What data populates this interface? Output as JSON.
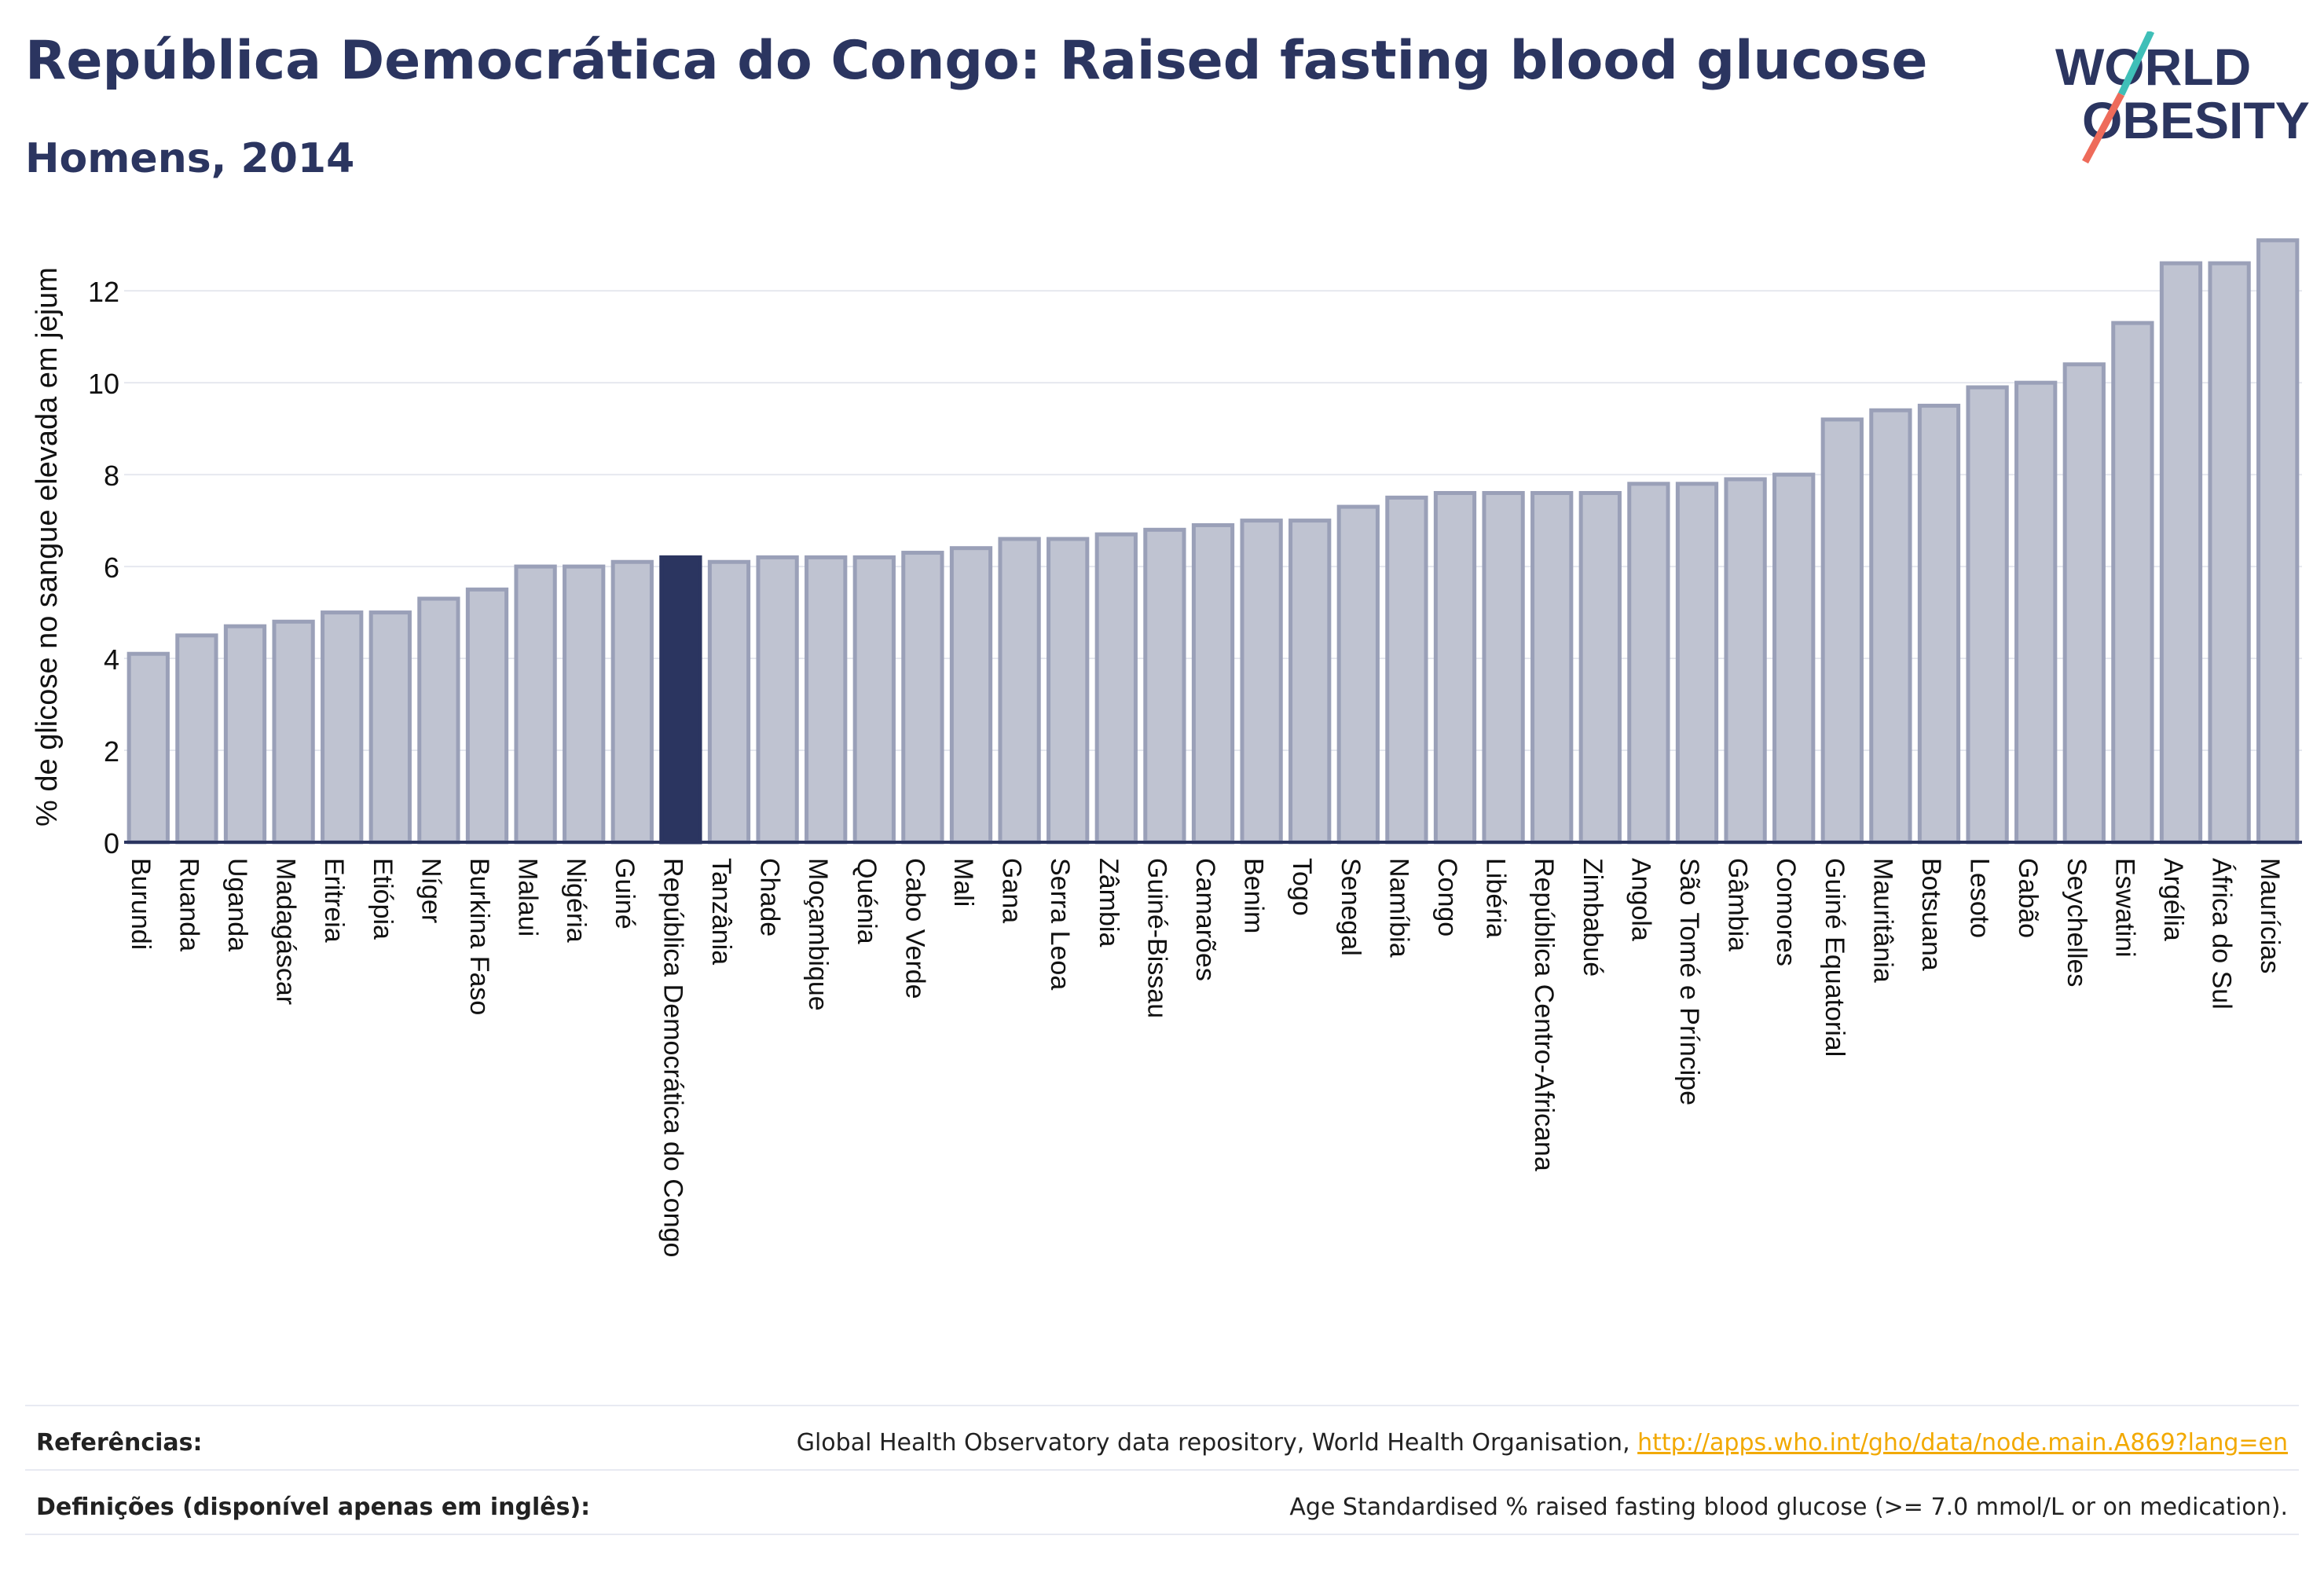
{
  "header": {
    "title": "República Democrática do Congo: Raised fasting blood glucose",
    "subtitle": "Homens, 2014"
  },
  "logo": {
    "line1": "WORLD",
    "line2": "OBESITY",
    "text_color": "#2b3560",
    "slash_color_top": "#3fbfb8",
    "slash_color_bottom": "#ee6b5a"
  },
  "colors": {
    "bar_fill": "#bfc3d1",
    "bar_stroke": "#9aa0b8",
    "highlight": "#2b3560",
    "grid": "#e6e8ef",
    "axis": "#2b3560"
  },
  "chart_data": {
    "type": "bar",
    "title": "República Democrática do Congo: Raised fasting blood glucose",
    "subtitle": "Homens, 2014",
    "xlabel": "",
    "ylabel": "% de glicose no sangue elevada em jejum",
    "ylim": [
      0,
      13.2
    ],
    "yticks": [
      0,
      2,
      4,
      6,
      8,
      10,
      12
    ],
    "grid": true,
    "highlight_category": "República Democrática do Congo",
    "categories": [
      "Burundi",
      "Ruanda",
      "Uganda",
      "Madagáscar",
      "Eritreia",
      "Etiópia",
      "Níger",
      "Burkina Faso",
      "Malaui",
      "Nigéria",
      "Guiné",
      "República Democrática do Congo",
      "Tanzânia",
      "Chade",
      "Moçambique",
      "Quénia",
      "Cabo Verde",
      "Mali",
      "Gana",
      "Serra Leoa",
      "Zâmbia",
      "Guiné-Bissau",
      "Camarões",
      "Benim",
      "Togo",
      "Senegal",
      "Namíbia",
      "Congo",
      "Libéria",
      "República Centro-Africana",
      "Zimbabué",
      "Angola",
      "São Tomé e Príncipe",
      "Gâmbia",
      "Comores",
      "Guiné Equatorial",
      "Mauritânia",
      "Botsuana",
      "Lesoto",
      "Gabão",
      "Seychelles",
      "Eswatini",
      "Argélia",
      "África do Sul",
      "Maurícias"
    ],
    "values": [
      4.1,
      4.5,
      4.7,
      4.8,
      5.0,
      5.0,
      5.3,
      5.5,
      6.0,
      6.0,
      6.1,
      6.2,
      6.1,
      6.2,
      6.2,
      6.2,
      6.3,
      6.4,
      6.6,
      6.6,
      6.7,
      6.8,
      6.9,
      7.0,
      7.0,
      7.3,
      7.5,
      7.6,
      7.6,
      7.6,
      7.6,
      7.8,
      7.8,
      7.9,
      8.0,
      9.2,
      9.4,
      9.5,
      9.9,
      10.0,
      10.4,
      11.3,
      12.6,
      12.6,
      13.1
    ]
  },
  "footer": {
    "references_label": "Referências:",
    "references_text": "Global Health Observatory data repository, World Health Organisation, ",
    "references_link": "http://apps.who.int/gho/data/node.main.A869?lang=en",
    "definitions_label": "Definições (disponível apenas em inglês):",
    "definitions_text": "Age Standardised % raised fasting blood glucose (>= 7.0 mmol/L or on medication)."
  }
}
